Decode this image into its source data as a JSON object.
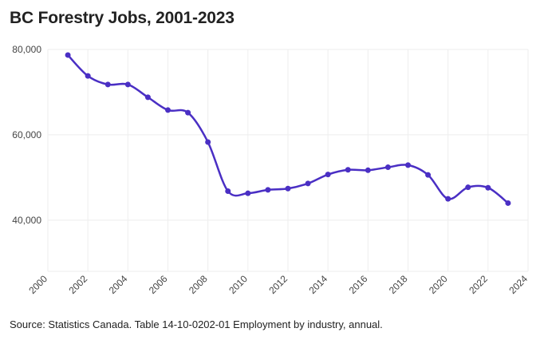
{
  "title": "BC Forestry Jobs, 2001-2023",
  "source": "Source: Statistics Canada. Table 14-10-0202-01 Employment by industry, annual.",
  "chart_data": {
    "type": "line",
    "title": "BC Forestry Jobs, 2001-2023",
    "xlabel": "",
    "ylabel": "",
    "xlim": [
      2000,
      2024
    ],
    "ylim": [
      28000,
      80000
    ],
    "x_ticks": [
      2000,
      2002,
      2004,
      2006,
      2008,
      2010,
      2012,
      2014,
      2016,
      2018,
      2020,
      2022,
      2024
    ],
    "x_tick_labels": [
      "2000",
      "2002",
      "2004",
      "2006",
      "2008",
      "2010",
      "2012",
      "2014",
      "2016",
      "2018",
      "2020",
      "2022",
      "2024"
    ],
    "y_ticks": [
      40000,
      60000,
      80000
    ],
    "y_tick_labels": [
      "40,000",
      "60,000",
      "80,000"
    ],
    "grid": true,
    "line_color": "#4a2fc4",
    "series": [
      {
        "name": "BC Forestry Jobs",
        "x": [
          2001,
          2002,
          2003,
          2004,
          2005,
          2006,
          2007,
          2008,
          2009,
          2010,
          2011,
          2012,
          2013,
          2014,
          2015,
          2016,
          2017,
          2018,
          2019,
          2020,
          2021,
          2022,
          2023
        ],
        "values": [
          78700,
          73800,
          71800,
          71800,
          68800,
          65800,
          65200,
          58300,
          46800,
          46300,
          47100,
          47400,
          48600,
          50700,
          51800,
          51700,
          52400,
          52900,
          50600,
          45000,
          47700,
          47600,
          44000
        ]
      }
    ]
  }
}
